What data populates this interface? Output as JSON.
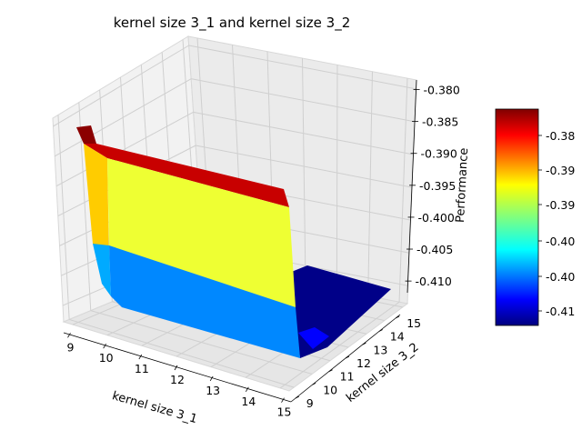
{
  "chart_data": {
    "type": "surface",
    "title": "kernel size 3_1 and kernel size 3_2",
    "xlabel": "kernel size 3_1",
    "ylabel": "kernel size 3_2",
    "zlabel": "Performance",
    "x_ticks": [
      "9",
      "10",
      "11",
      "12",
      "13",
      "14",
      "15"
    ],
    "y_ticks": [
      "9",
      "10",
      "11",
      "12",
      "13",
      "14",
      "15"
    ],
    "z_ticks": [
      "-0.380",
      "-0.385",
      "-0.390",
      "-0.395",
      "-0.400",
      "-0.405",
      "-0.410"
    ],
    "colormap": "jet",
    "colorbar_ticks": [
      "-0.38",
      "-0.39",
      "-0.39",
      "-0.40",
      "-0.40",
      "-0.41"
    ],
    "grid": true,
    "surface_levels": [
      {
        "region": "kernel size 3_1 = 9, back ridge",
        "value": -0.382,
        "color": "#8b0000"
      },
      {
        "region": "top band",
        "value": -0.3835,
        "color": "#c00000"
      },
      {
        "region": "upper wall",
        "value": -0.3925,
        "color": "#eeff33"
      },
      {
        "region": "left edge",
        "value": -0.391,
        "color": "#ffcc00"
      },
      {
        "region": "lower wall",
        "value": -0.4035,
        "color": "#0088ff"
      },
      {
        "region": "floor",
        "value": -0.412,
        "color": "#000088"
      }
    ]
  }
}
